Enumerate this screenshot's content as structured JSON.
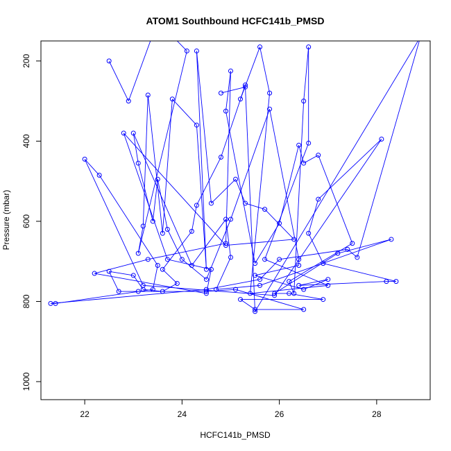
{
  "chart_data": {
    "type": "line",
    "title": "ATOM1 Southbound HCFC141b_PMSD",
    "xlabel": "HCFC141b_PMSD",
    "ylabel": "Pressure (mbar)",
    "xlim": [
      21.1,
      29.1
    ],
    "ylim": [
      1045,
      150
    ],
    "y_axis_inverted": true,
    "x_ticks": [
      22,
      24,
      26,
      28
    ],
    "y_ticks": [
      200,
      400,
      600,
      800,
      1000
    ],
    "grid": false,
    "series_color": "#0000ff",
    "marker": "open-circle",
    "series": [
      {
        "points": [
          [
            22.5,
            200
          ],
          [
            22.9,
            300
          ],
          [
            23.5,
            100
          ],
          [
            24.1,
            175
          ],
          [
            23.1,
            680
          ],
          [
            23.2,
            612
          ],
          [
            23.3,
            285
          ],
          [
            23.6,
            630
          ],
          [
            23.8,
            295
          ],
          [
            24.3,
            360
          ],
          [
            24.5,
            720
          ],
          [
            24.3,
            175
          ],
          [
            24.6,
            555
          ],
          [
            25.1,
            495
          ],
          [
            25.3,
            555
          ],
          [
            25.7,
            570
          ],
          [
            26.3,
            645
          ],
          [
            24.9,
            660
          ],
          [
            22.8,
            380
          ],
          [
            23.7,
            695
          ],
          [
            24.6,
            720
          ],
          [
            24.5,
            780
          ],
          [
            22.2,
            730
          ],
          [
            23.3,
            695
          ],
          [
            24.9,
            655
          ],
          [
            25.0,
            225
          ],
          [
            24.9,
            325
          ],
          [
            25.5,
            705
          ],
          [
            26.0,
            605
          ],
          [
            26.4,
            410
          ],
          [
            26.5,
            455
          ],
          [
            26.8,
            435
          ],
          [
            27.5,
            655
          ],
          [
            26.2,
            750
          ],
          [
            26.3,
            780
          ],
          [
            26.5,
            300
          ],
          [
            26.6,
            165
          ],
          [
            26.6,
            405
          ],
          [
            25.7,
            695
          ],
          [
            27.0,
            760
          ],
          [
            25.4,
            780
          ],
          [
            25.8,
            280
          ],
          [
            25.6,
            165
          ],
          [
            25.2,
            295
          ],
          [
            25.3,
            260
          ],
          [
            24.8,
            440
          ],
          [
            24.3,
            560
          ],
          [
            24.2,
            625
          ],
          [
            23.6,
            720
          ],
          [
            23.9,
            755
          ],
          [
            23.6,
            775
          ],
          [
            23.2,
            770
          ],
          [
            23.0,
            735
          ],
          [
            22.5,
            725
          ],
          [
            22.7,
            775
          ],
          [
            23.1,
            775
          ],
          [
            24.5,
            775
          ],
          [
            25.1,
            770
          ],
          [
            26.5,
            820
          ],
          [
            25.5,
            820
          ],
          [
            25.2,
            795
          ],
          [
            26.9,
            795
          ],
          [
            26.2,
            780
          ],
          [
            25.9,
            780
          ],
          [
            27.2,
            680
          ],
          [
            28.3,
            645
          ],
          [
            25.6,
            760
          ],
          [
            24.7,
            770
          ],
          [
            25.0,
            690
          ],
          [
            24.9,
            595
          ],
          [
            24.2,
            710
          ],
          [
            23.0,
            380
          ],
          [
            23.1,
            455
          ],
          [
            23.4,
            600
          ],
          [
            23.5,
            495
          ],
          [
            23.7,
            620
          ],
          [
            24.0,
            695
          ],
          [
            24.5,
            745
          ],
          [
            25.0,
            595
          ],
          [
            25.8,
            320
          ],
          [
            26.4,
            695
          ],
          [
            26.4,
            710
          ],
          [
            25.5,
            735
          ],
          [
            26.5,
            770
          ],
          [
            27.0,
            745
          ],
          [
            26.4,
            760
          ],
          [
            28.2,
            750
          ],
          [
            28.4,
            750
          ],
          [
            26.9,
            705
          ],
          [
            26.6,
            630
          ],
          [
            26.8,
            545
          ],
          [
            28.1,
            395
          ],
          [
            25.9,
            785
          ],
          [
            23.2,
            760
          ],
          [
            22.0,
            445
          ],
          [
            22.3,
            485
          ],
          [
            23.5,
            710
          ],
          [
            23.4,
            770
          ],
          [
            21.4,
            805
          ],
          [
            21.3,
            805
          ],
          [
            24.5,
            770
          ],
          [
            25.6,
            745
          ],
          [
            26.0,
            695
          ],
          [
            27.4,
            670
          ],
          [
            27.6,
            690
          ],
          [
            28.9,
            140
          ],
          [
            25.5,
            825
          ],
          [
            25.3,
            265
          ],
          [
            24.8,
            280
          ]
        ]
      }
    ]
  }
}
